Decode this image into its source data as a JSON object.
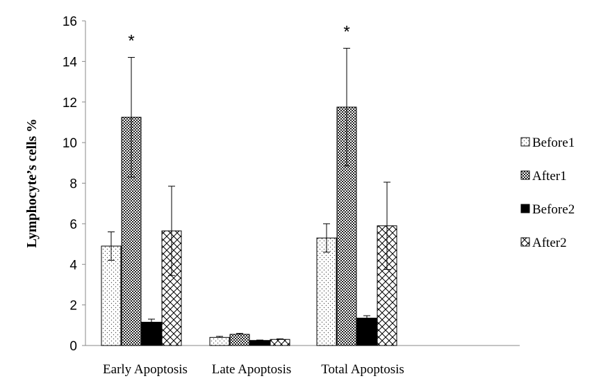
{
  "chart_data": {
    "type": "bar",
    "title": "",
    "xlabel": "",
    "ylabel": "Lymphocyte’s cells %",
    "ylim": [
      0,
      16
    ],
    "yticks": [
      0,
      2,
      4,
      6,
      8,
      10,
      12,
      14,
      16
    ],
    "categories": [
      "Early Apoptosis",
      "Late Apoptosis",
      "Total Apoptosis"
    ],
    "series": [
      {
        "name": "Before1",
        "values": [
          4.9,
          0.4,
          5.3
        ],
        "errors": [
          0.7,
          0.05,
          0.7
        ],
        "pattern": "dots"
      },
      {
        "name": "After1",
        "values": [
          11.25,
          0.55,
          11.75
        ],
        "errors": [
          2.95,
          0.05,
          2.9
        ],
        "pattern": "crosshatch"
      },
      {
        "name": "Before2",
        "values": [
          1.15,
          0.25,
          1.35
        ],
        "errors": [
          0.15,
          0.02,
          0.12
        ],
        "pattern": "solid"
      },
      {
        "name": "After2",
        "values": [
          5.65,
          0.3,
          5.9
        ],
        "errors": [
          2.2,
          0.03,
          2.15
        ],
        "pattern": "diamond"
      }
    ],
    "annotations": [
      {
        "text": "*",
        "category": "Early Apoptosis",
        "series": "After1"
      },
      {
        "text": "*",
        "category": "Total Apoptosis",
        "series": "After1"
      }
    ],
    "legend_position": "right",
    "grid": false,
    "colors": {
      "bar_edge": "#000000",
      "background": "#ffffff",
      "solid_fill": "#000000"
    }
  }
}
